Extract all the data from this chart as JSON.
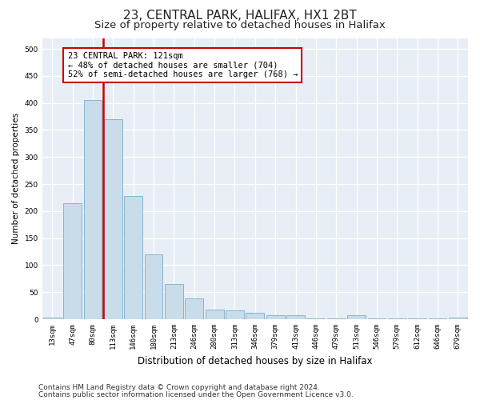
{
  "title": "23, CENTRAL PARK, HALIFAX, HX1 2BT",
  "subtitle": "Size of property relative to detached houses in Halifax",
  "xlabel": "Distribution of detached houses by size in Halifax",
  "ylabel": "Number of detached properties",
  "categories": [
    "13sqm",
    "47sqm",
    "80sqm",
    "113sqm",
    "146sqm",
    "180sqm",
    "213sqm",
    "246sqm",
    "280sqm",
    "313sqm",
    "346sqm",
    "379sqm",
    "413sqm",
    "446sqm",
    "479sqm",
    "513sqm",
    "546sqm",
    "579sqm",
    "612sqm",
    "646sqm",
    "679sqm"
  ],
  "values": [
    3,
    215,
    405,
    370,
    228,
    120,
    65,
    38,
    18,
    16,
    12,
    8,
    7,
    1,
    2,
    8,
    2,
    1,
    1,
    1,
    3
  ],
  "bar_color": "#c9dcea",
  "bar_edge_color": "#7aaec8",
  "red_line_index": 2.5,
  "annotation_text": "23 CENTRAL PARK: 121sqm\n← 48% of detached houses are smaller (704)\n52% of semi-detached houses are larger (768) →",
  "annotation_box_facecolor": "white",
  "annotation_box_edgecolor": "#cc0000",
  "red_line_color": "#cc0000",
  "ylim": [
    0,
    520
  ],
  "yticks": [
    0,
    50,
    100,
    150,
    200,
    250,
    300,
    350,
    400,
    450,
    500
  ],
  "plot_bg_color": "#e8eef5",
  "fig_bg_color": "#ffffff",
  "grid_color": "#ffffff",
  "footer_line1": "Contains HM Land Registry data © Crown copyright and database right 2024.",
  "footer_line2": "Contains public sector information licensed under the Open Government Licence v3.0.",
  "title_fontsize": 11,
  "subtitle_fontsize": 9.5,
  "xlabel_fontsize": 8.5,
  "ylabel_fontsize": 7.5,
  "tick_fontsize": 6.5,
  "annotation_fontsize": 7.5,
  "footer_fontsize": 6.5
}
